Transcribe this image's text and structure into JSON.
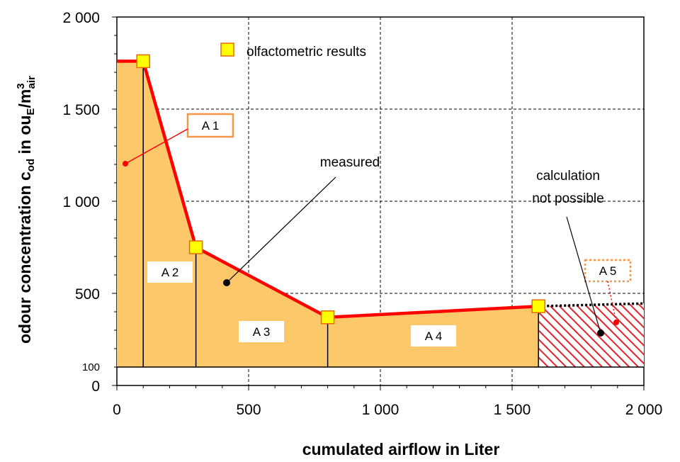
{
  "chart_data": {
    "type": "area",
    "xlabel": "cumulated airflow in Liter",
    "ylabel_parts": {
      "pre": "odour concentration c",
      "sub1": "od",
      "mid": " in ou",
      "sub2": "E",
      "slash": "/m",
      "sup": "3",
      "sub3": "air"
    },
    "xlim": [
      0,
      2000
    ],
    "ylim": [
      0,
      2000
    ],
    "x_ticks": [
      {
        "value": 0,
        "label": "0"
      },
      {
        "value": 500,
        "label": "500"
      },
      {
        "value": 1000,
        "label": "1 000"
      },
      {
        "value": 1500,
        "label": "1 500"
      },
      {
        "value": 2000,
        "label": "2 000"
      }
    ],
    "y_ticks": [
      {
        "value": 0,
        "label": "0"
      },
      {
        "value": 100,
        "label": "100"
      },
      {
        "value": 500,
        "label": "500"
      },
      {
        "value": 1000,
        "label": "1 000"
      },
      {
        "value": 1500,
        "label": "1 500"
      },
      {
        "value": 2000,
        "label": "2 000"
      }
    ],
    "baseline": 100,
    "grid": true,
    "legend": {
      "label": "olfactometric results",
      "position": "top-left"
    },
    "series": [
      {
        "name": "measured",
        "x": [
          0,
          100,
          300,
          800,
          1600
        ],
        "y": [
          1760,
          1760,
          750,
          370,
          430
        ]
      }
    ],
    "olfactometric_points": {
      "x": [
        100,
        300,
        800,
        1600
      ],
      "y": [
        1760,
        750,
        370,
        430
      ]
    },
    "extrapolated": {
      "x": [
        1600,
        2000
      ],
      "y": [
        430,
        445
      ]
    },
    "areas": [
      {
        "label": "A 1"
      },
      {
        "label": "A 2"
      },
      {
        "label": "A 3"
      },
      {
        "label": "A 4"
      },
      {
        "label": "A 5"
      }
    ],
    "annotations": {
      "measured": "measured",
      "calc_line1": "calculation",
      "calc_line2": "not possible"
    },
    "colors": {
      "area_fill": "#FCC86A",
      "line": "#FF0000",
      "marker_fill": "#FFFF00",
      "marker_edge": "#E36C09",
      "a1_box_edge": "#F79646",
      "hatch": "#E0242A",
      "grid": "#000000"
    }
  }
}
